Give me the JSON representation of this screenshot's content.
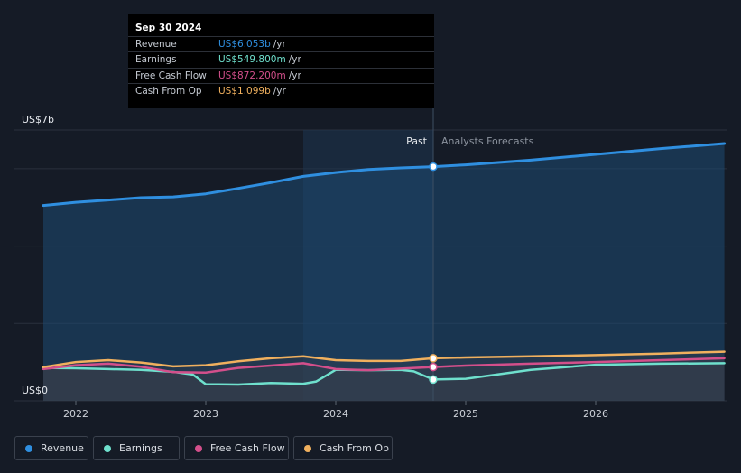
{
  "chart_data": {
    "type": "area",
    "title": "",
    "xlabel": "",
    "ylabel": "",
    "ylim": [
      0,
      7
    ],
    "y_unit_labels": {
      "top": "US$7b",
      "bottom": "US$0"
    },
    "x_ticks": [
      "2022",
      "2023",
      "2024",
      "2025",
      "2026"
    ],
    "x_range": [
      2021.75,
      2026.99
    ],
    "divider_x": 2024.75,
    "past_label": "Past",
    "forecast_label": "Analysts Forecasts",
    "grid": true,
    "legend_position": "bottom-left",
    "series": [
      {
        "name": "Revenue",
        "key": "revenue",
        "color": "#2f8fe0",
        "x": [
          2021.75,
          2022.0,
          2022.25,
          2022.5,
          2022.75,
          2023.0,
          2023.25,
          2023.5,
          2023.75,
          2024.0,
          2024.25,
          2024.5,
          2024.75,
          2025.0,
          2025.5,
          2026.0,
          2026.5,
          2026.99
        ],
        "y": [
          5.05,
          5.13,
          5.19,
          5.25,
          5.27,
          5.35,
          5.49,
          5.64,
          5.8,
          5.9,
          5.98,
          6.02,
          6.053,
          6.1,
          6.22,
          6.37,
          6.52,
          6.65
        ]
      },
      {
        "name": "Earnings",
        "key": "earnings",
        "color": "#6fe0cd",
        "x": [
          2021.75,
          2022.0,
          2022.25,
          2022.5,
          2022.75,
          2022.9,
          2023.0,
          2023.25,
          2023.5,
          2023.75,
          2023.85,
          2024.0,
          2024.25,
          2024.5,
          2024.6,
          2024.75,
          2025.0,
          2025.5,
          2026.0,
          2026.5,
          2026.99
        ],
        "y": [
          0.85,
          0.84,
          0.82,
          0.8,
          0.75,
          0.68,
          0.43,
          0.42,
          0.46,
          0.44,
          0.5,
          0.8,
          0.79,
          0.8,
          0.76,
          0.55,
          0.57,
          0.8,
          0.93,
          0.96,
          0.97
        ]
      },
      {
        "name": "Free Cash Flow",
        "key": "free_cash_flow",
        "color": "#d34f8b",
        "x": [
          2021.75,
          2022.0,
          2022.25,
          2022.5,
          2022.75,
          2023.0,
          2023.25,
          2023.5,
          2023.75,
          2024.0,
          2024.25,
          2024.5,
          2024.75,
          2025.0,
          2025.5,
          2026.0,
          2026.5,
          2026.99
        ],
        "y": [
          0.82,
          0.92,
          0.96,
          0.88,
          0.74,
          0.73,
          0.85,
          0.91,
          0.97,
          0.82,
          0.79,
          0.83,
          0.872,
          0.91,
          0.96,
          1.0,
          1.05,
          1.1
        ]
      },
      {
        "name": "Cash From Op",
        "key": "cash_from_op",
        "color": "#f0b05e",
        "x": [
          2021.75,
          2022.0,
          2022.25,
          2022.5,
          2022.75,
          2023.0,
          2023.25,
          2023.5,
          2023.75,
          2024.0,
          2024.25,
          2024.5,
          2024.75,
          2025.0,
          2025.5,
          2026.0,
          2026.5,
          2026.99
        ],
        "y": [
          0.87,
          1.0,
          1.05,
          0.99,
          0.89,
          0.92,
          1.02,
          1.1,
          1.15,
          1.05,
          1.03,
          1.03,
          1.099,
          1.12,
          1.15,
          1.18,
          1.22,
          1.27
        ]
      }
    ]
  },
  "tooltip": {
    "date": "Sep 30 2024",
    "rows": [
      {
        "label": "Revenue",
        "value": "US$6.053b",
        "unit": "/yr",
        "color": "#2f8fe0"
      },
      {
        "label": "Earnings",
        "value": "US$549.800m",
        "unit": "/yr",
        "color": "#6fe0cd"
      },
      {
        "label": "Free Cash Flow",
        "value": "US$872.200m",
        "unit": "/yr",
        "color": "#d34f8b"
      },
      {
        "label": "Cash From Op",
        "value": "US$1.099b",
        "unit": "/yr",
        "color": "#f0b05e"
      }
    ]
  },
  "legend": [
    {
      "label": "Revenue",
      "color": "#2f8fe0"
    },
    {
      "label": "Earnings",
      "color": "#6fe0cd"
    },
    {
      "label": "Free Cash Flow",
      "color": "#d34f8b"
    },
    {
      "label": "Cash From Op",
      "color": "#f0b05e"
    }
  ]
}
